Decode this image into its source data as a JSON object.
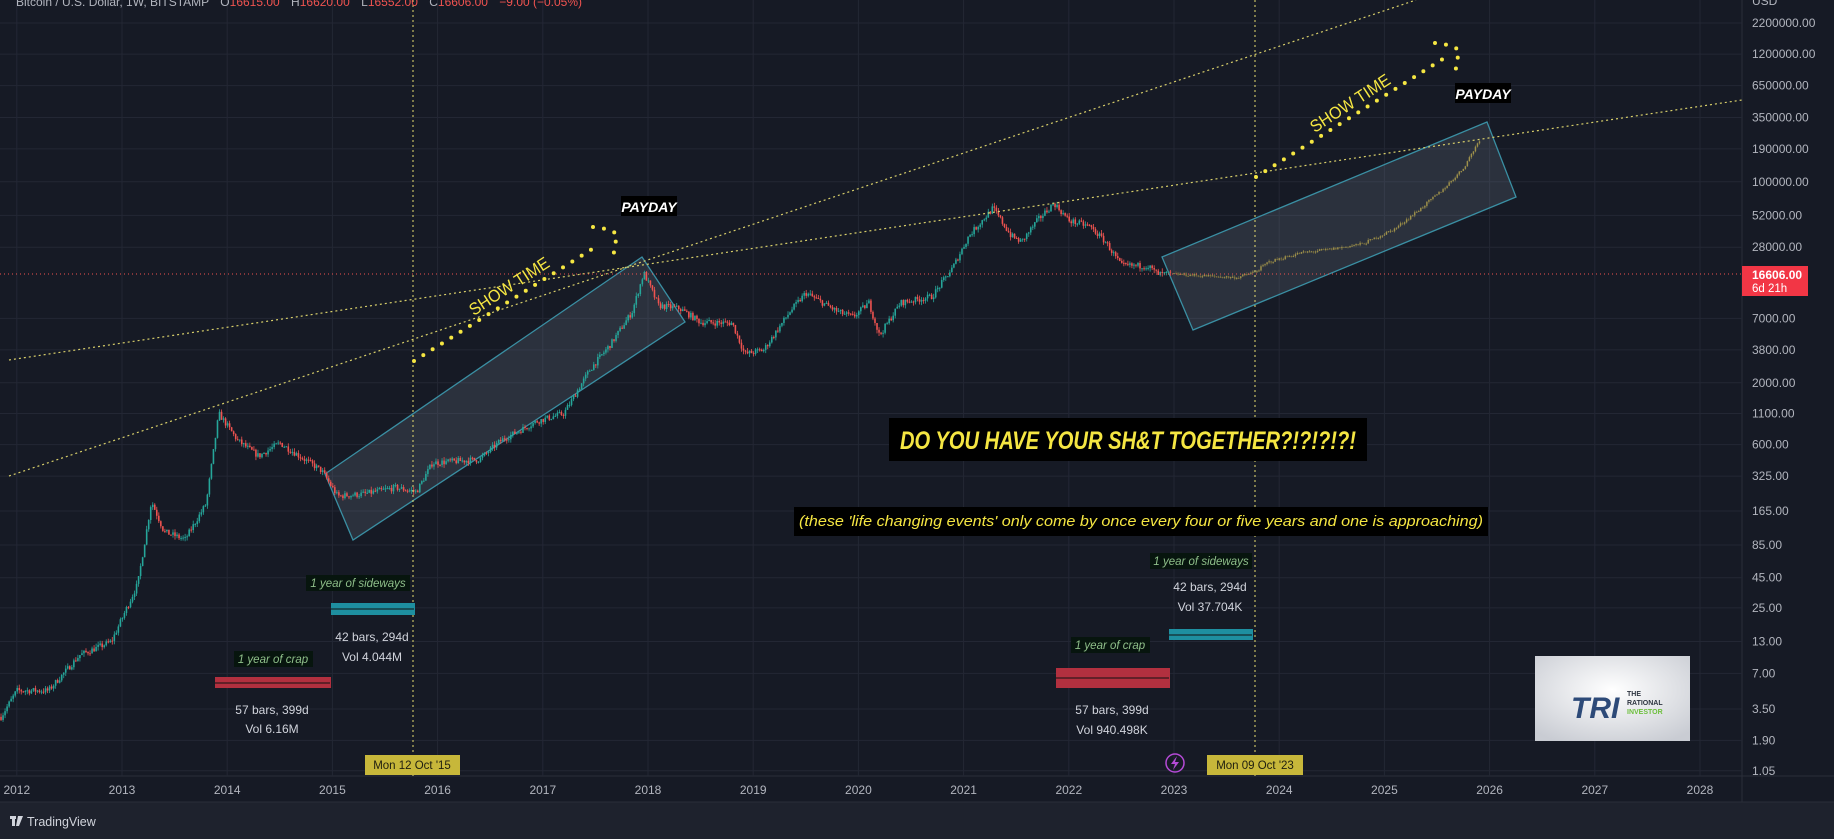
{
  "header": {
    "symbol": "Bitcoin / U.S. Dollar, 1W, BITSTAMP",
    "open_label": "O",
    "open": "16615.00",
    "high_label": "H",
    "high": "16620.00",
    "low_label": "L",
    "low": "16552.00",
    "close_label": "C",
    "close": "16606.00",
    "change": "−9.00 (−0.05%)"
  },
  "price_axis": {
    "currency": "USD",
    "current_price": "16606.00",
    "countdown": "6d 21h"
  },
  "crosshair_labels": [
    "Mon 12 Oct '15",
    "Mon 09 Oct '23"
  ],
  "annotations": {
    "headline": "DO YOU HAVE YOUR SH&T TOGETHER?!?!?!?!",
    "subheadline": "(these 'life changing events' only come by once every four or five years and one is approaching)",
    "show_time_1": "SHOW TIME",
    "show_time_2": "SHOW TIME",
    "payday_1": "PAYDAY",
    "payday_2": "PAYDAY",
    "range_2015": {
      "crap_label": "1 year of crap",
      "crap_bars": "57 bars, 399d",
      "crap_vol": "Vol 6.16M",
      "sideways_label": "1 year of sideways",
      "sideways_bars": "42 bars, 294d",
      "sideways_vol": "Vol 4.044M"
    },
    "range_2023": {
      "crap_label": "1 year of crap",
      "crap_bars": "57 bars, 399d",
      "crap_vol": "Vol 940.498K",
      "sideways_label": "1 year of sideways",
      "sideways_bars": "42 bars, 294d",
      "sideways_vol": "Vol 37.704K"
    },
    "logo_text": "TRI THE RATIONAL INVESTOR"
  },
  "footer": {
    "brand": "TradingView"
  },
  "colors": {
    "background": "#161a25",
    "up": "#26a69a",
    "down": "#ef5350",
    "annotation_yellow": "#f5e642",
    "channel": "#3a8fa3",
    "crap_bar": "#b2303f",
    "sideways_bar": "#1e8fa0",
    "crosshair_label": "#c7b73a"
  },
  "chart_data": {
    "type": "candlestick",
    "title": "Bitcoin / U.S. Dollar, 1W, BITSTAMP",
    "y_scale": "log",
    "ylim": [
      1.05,
      2200000
    ],
    "y_ticks": [
      "2200000.00",
      "1200000.00",
      "650000.00",
      "350000.00",
      "190000.00",
      "100000.00",
      "52000.00",
      "28000.00",
      "7000.00",
      "3800.00",
      "2000.00",
      "1100.00",
      "600.00",
      "325.00",
      "165.00",
      "85.00",
      "45.00",
      "25.00",
      "13.00",
      "7.00",
      "3.50",
      "1.90",
      "1.05"
    ],
    "x_ticks": [
      "2012",
      "2013",
      "2014",
      "2015",
      "2016",
      "2017",
      "2018",
      "2019",
      "2020",
      "2021",
      "2022",
      "2023",
      "2024",
      "2025",
      "2026",
      "2027",
      "2028"
    ],
    "xlim": [
      2011.84,
      2028.4
    ],
    "grid": true,
    "history_approx_close": [
      [
        2011.85,
        3
      ],
      [
        2012.0,
        5
      ],
      [
        2012.3,
        5
      ],
      [
        2012.6,
        10
      ],
      [
        2012.9,
        13
      ],
      [
        2013.15,
        40
      ],
      [
        2013.28,
        200
      ],
      [
        2013.4,
        110
      ],
      [
        2013.6,
        95
      ],
      [
        2013.8,
        190
      ],
      [
        2013.92,
        1100
      ],
      [
        2014.1,
        650
      ],
      [
        2014.3,
        480
      ],
      [
        2014.5,
        620
      ],
      [
        2014.9,
        360
      ],
      [
        2015.05,
        220
      ],
      [
        2015.3,
        230
      ],
      [
        2015.6,
        260
      ],
      [
        2015.8,
        240
      ],
      [
        2015.95,
        420
      ],
      [
        2016.4,
        450
      ],
      [
        2016.6,
        650
      ],
      [
        2016.95,
        950
      ],
      [
        2017.2,
        1100
      ],
      [
        2017.45,
        2600
      ],
      [
        2017.65,
        4300
      ],
      [
        2017.85,
        8000
      ],
      [
        2017.96,
        17000
      ],
      [
        2018.1,
        9000
      ],
      [
        2018.3,
        8500
      ],
      [
        2018.5,
        6500
      ],
      [
        2018.8,
        6400
      ],
      [
        2018.92,
        3500
      ],
      [
        2019.1,
        3800
      ],
      [
        2019.35,
        8000
      ],
      [
        2019.5,
        11500
      ],
      [
        2019.8,
        8000
      ],
      [
        2019.95,
        7200
      ],
      [
        2020.1,
        9500
      ],
      [
        2020.2,
        5000
      ],
      [
        2020.4,
        9500
      ],
      [
        2020.7,
        10700
      ],
      [
        2020.9,
        19000
      ],
      [
        2021.05,
        35000
      ],
      [
        2021.28,
        60000
      ],
      [
        2021.45,
        35000
      ],
      [
        2021.55,
        31000
      ],
      [
        2021.7,
        47000
      ],
      [
        2021.86,
        66000
      ],
      [
        2022.0,
        47000
      ],
      [
        2022.2,
        42000
      ],
      [
        2022.35,
        31000
      ],
      [
        2022.5,
        19500
      ],
      [
        2022.75,
        19500
      ],
      [
        2022.85,
        16500
      ],
      [
        2022.97,
        16606
      ]
    ],
    "projection_approx_close": [
      [
        2023.0,
        16606
      ],
      [
        2023.3,
        16000
      ],
      [
        2023.6,
        15500
      ],
      [
        2023.78,
        17500
      ],
      [
        2023.9,
        21000
      ],
      [
        2024.2,
        25000
      ],
      [
        2024.5,
        27000
      ],
      [
        2024.8,
        30000
      ],
      [
        2025.1,
        40000
      ],
      [
        2025.35,
        60000
      ],
      [
        2025.55,
        85000
      ],
      [
        2025.75,
        130000
      ],
      [
        2025.92,
        240000
      ]
    ]
  }
}
